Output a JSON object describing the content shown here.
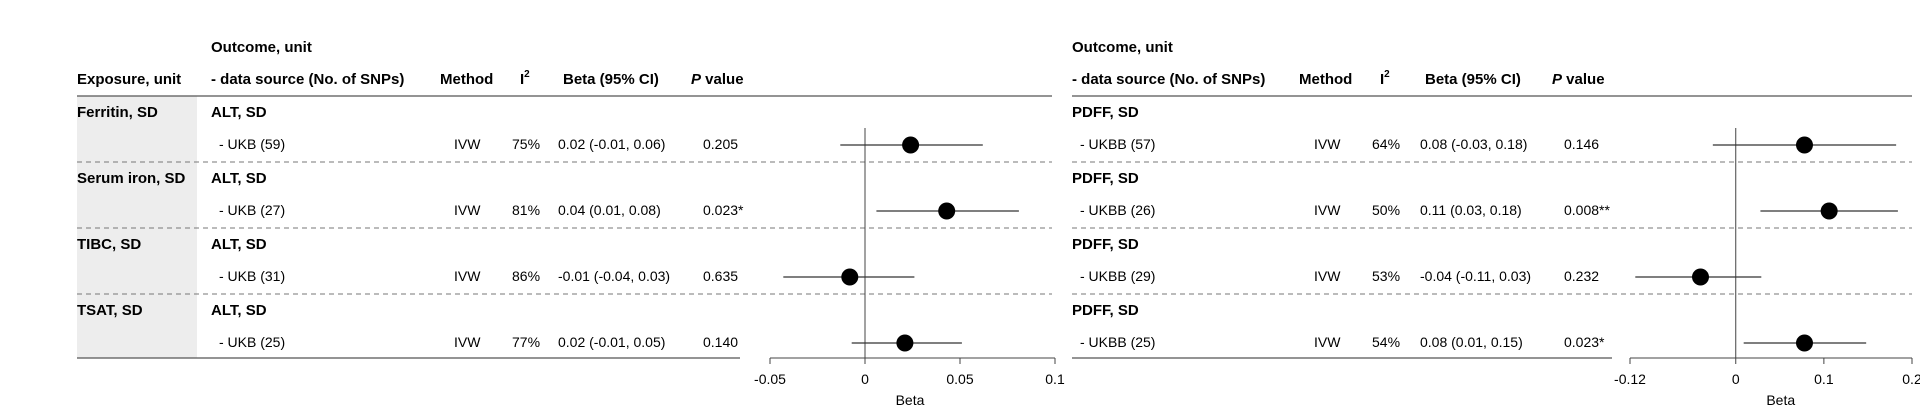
{
  "panels": [
    {
      "headers": {
        "exposure": "Exposure, unit",
        "outcome_line1": "Outcome, unit",
        "outcome_line2": "- data source (No. of SNPs)",
        "method": "Method",
        "i2_base": "I",
        "i2_sup": "2",
        "beta": "Beta (95% CI)",
        "p_italic": "P",
        "p_rest": " value"
      },
      "rows": [
        {
          "exposure": "Ferritin, SD",
          "outcome": "ALT, SD",
          "source": "- UKB (59)",
          "method": "IVW",
          "i2": "75%",
          "beta_text": "0.02 (-0.01, 0.06)",
          "p": "0.205"
        },
        {
          "exposure": "Serum iron, SD",
          "outcome": "ALT, SD",
          "source": "- UKB (27)",
          "method": "IVW",
          "i2": "81%",
          "beta_text": "0.04 (0.01, 0.08)",
          "p": "0.023*"
        },
        {
          "exposure": "TIBC, SD",
          "outcome": "ALT, SD",
          "source": "- UKB (31)",
          "method": "IVW",
          "i2": "86%",
          "beta_text": "-0.01 (-0.04, 0.03)",
          "p": "0.635"
        },
        {
          "exposure": "TSAT, SD",
          "outcome": "ALT, SD",
          "source": "- UKB (25)",
          "method": "IVW",
          "i2": "77%",
          "beta_text": "0.02 (-0.01, 0.05)",
          "p": "0.140"
        }
      ]
    },
    {
      "headers": {
        "outcome_line1": "Outcome, unit",
        "outcome_line2": "- data source (No. of SNPs)",
        "method": "Method",
        "i2_base": "I",
        "i2_sup": "2",
        "beta": "Beta (95% CI)",
        "p_italic": "P",
        "p_rest": " value"
      },
      "rows": [
        {
          "outcome": "PDFF, SD",
          "source": "- UKBB (57)",
          "method": "IVW",
          "i2": "64%",
          "beta_text": "0.08 (-0.03, 0.18)",
          "p": "0.146"
        },
        {
          "outcome": "PDFF, SD",
          "source": "- UKBB (26)",
          "method": "IVW",
          "i2": "50%",
          "beta_text": "0.11 (0.03, 0.18)",
          "p": "0.008**"
        },
        {
          "outcome": "PDFF, SD",
          "source": "- UKBB (29)",
          "method": "IVW",
          "i2": "53%",
          "beta_text": "-0.04 (-0.11, 0.03)",
          "p": "0.232"
        },
        {
          "outcome": "PDFF, SD",
          "source": "- UKBB (25)",
          "method": "IVW",
          "i2": "54%",
          "beta_text": "0.08 (0.01, 0.15)",
          "p": "0.023*"
        }
      ]
    }
  ],
  "chart_data": [
    {
      "type": "scatter",
      "subtype": "forest",
      "xlabel": "Beta",
      "xlim": [
        -0.05,
        0.1
      ],
      "ticks": [
        -0.05,
        0,
        0.05,
        0.1
      ],
      "tick_labels": [
        "-0.05",
        "0",
        "0.05",
        "0.1"
      ],
      "reference_line": 0,
      "categories": [
        "Ferritin, SD",
        "Serum iron, SD",
        "TIBC, SD",
        "TSAT, SD"
      ],
      "estimates": [
        0.024,
        0.043,
        -0.008,
        0.021
      ],
      "lower": [
        -0.013,
        0.006,
        -0.043,
        -0.007
      ],
      "upper": [
        0.062,
        0.081,
        0.026,
        0.051
      ]
    },
    {
      "type": "scatter",
      "subtype": "forest",
      "xlabel": "Beta",
      "xlim": [
        -0.12,
        0.2
      ],
      "ticks": [
        -0.12,
        0,
        0.1,
        0.2
      ],
      "tick_labels": [
        "-0.12",
        "0",
        "0.1",
        "0.2"
      ],
      "reference_line": 0,
      "categories": [
        "Ferritin, SD",
        "Serum iron, SD",
        "TIBC, SD",
        "TSAT, SD"
      ],
      "estimates": [
        0.078,
        0.106,
        -0.04,
        0.078
      ],
      "lower": [
        -0.026,
        0.028,
        -0.114,
        0.009
      ],
      "upper": [
        0.182,
        0.184,
        0.029,
        0.148
      ]
    }
  ],
  "colors": {
    "text": "#111111",
    "rule": "#555555",
    "dash": "#777777",
    "exposure_bg": "#ededed",
    "point": "#000000"
  }
}
